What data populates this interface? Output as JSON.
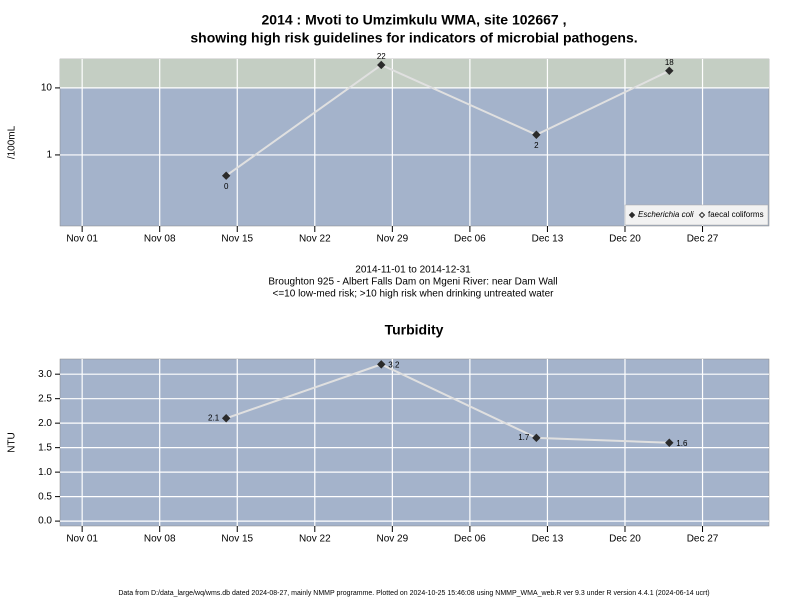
{
  "chart_data": [
    {
      "type": "line",
      "title": [
        "2014 : Mvoti to Umzimkulu WMA, site 102667 ,",
        "showing high risk guidelines for indicators of microbial pathogens."
      ],
      "ylabel": "/100mL",
      "log_y": true,
      "grid": true,
      "x": [
        "2014-11-14",
        "2014-11-28",
        "2014-12-12",
        "2014-12-24"
      ],
      "series": [
        {
          "name": "Escherichia coli",
          "color": "#2b2b2b",
          "line_color": "#e0e0e0",
          "marker": "filled",
          "values": [
            0.49,
            22,
            2,
            18
          ],
          "value_labels": [
            "0",
            "22",
            "2",
            "18"
          ]
        },
        {
          "name": "faecal coliforms",
          "color": "#2b2b2b",
          "marker": "open",
          "values": [
            null,
            null,
            null,
            null
          ]
        }
      ],
      "high_risk_above": 10,
      "band_color": "#c4cec3",
      "plot_color": "#a4b3cb",
      "xlim": [
        "2014-10-30",
        "2015-01-02"
      ],
      "xticks": [
        {
          "value": "2014-11-01",
          "label": "Nov 01"
        },
        {
          "value": "2014-11-08",
          "label": "Nov 08"
        },
        {
          "value": "2014-11-15",
          "label": "Nov 15"
        },
        {
          "value": "2014-11-22",
          "label": "Nov 22"
        },
        {
          "value": "2014-11-29",
          "label": "Nov 29"
        },
        {
          "value": "2014-12-06",
          "label": "Dec 06"
        },
        {
          "value": "2014-12-13",
          "label": "Dec 13"
        },
        {
          "value": "2014-12-20",
          "label": "Dec 20"
        },
        {
          "value": "2014-12-27",
          "label": "Dec 27"
        }
      ],
      "ylim": [
        0.087,
        27
      ],
      "yticks": [
        1,
        10
      ],
      "legend": "bottom-right",
      "caption": [
        "2014-11-01 to 2014-12-31",
        "Broughton 925 - Albert Falls Dam on Mgeni River: near Dam Wall",
        "<=10 low-med risk; >10 high risk when drinking untreated water"
      ]
    },
    {
      "type": "line",
      "title": [
        "Turbidity"
      ],
      "ylabel": "NTU",
      "log_y": false,
      "grid": true,
      "x": [
        "2014-11-14",
        "2014-11-28",
        "2014-12-12",
        "2014-12-24"
      ],
      "series": [
        {
          "color": "#2b2b2b",
          "line_color": "#e0e0e0",
          "marker": "filled",
          "values": [
            2.1,
            3.2,
            1.7,
            1.6
          ]
        }
      ],
      "plot_color": "#a4b3cb",
      "xlim": [
        "2014-10-30",
        "2015-01-02"
      ],
      "xticks": [
        {
          "value": "2014-11-01",
          "label": "Nov 01"
        },
        {
          "value": "2014-11-08",
          "label": "Nov 08"
        },
        {
          "value": "2014-11-15",
          "label": "Nov 15"
        },
        {
          "value": "2014-11-22",
          "label": "Nov 22"
        },
        {
          "value": "2014-11-29",
          "label": "Nov 29"
        },
        {
          "value": "2014-12-06",
          "label": "Dec 06"
        },
        {
          "value": "2014-12-13",
          "label": "Dec 13"
        },
        {
          "value": "2014-12-20",
          "label": "Dec 20"
        },
        {
          "value": "2014-12-27",
          "label": "Dec 27"
        }
      ],
      "ylim": [
        -0.1,
        3.31
      ],
      "yticks": [
        {
          "value": 0,
          "label": "0.0"
        },
        {
          "value": 0.5,
          "label": "0.5"
        },
        {
          "value": 1,
          "label": "1.0"
        },
        {
          "value": 1.5,
          "label": "1.5"
        },
        {
          "value": 2,
          "label": "2.0"
        },
        {
          "value": 2.5,
          "label": "2.5"
        },
        {
          "value": 3,
          "label": "3.0"
        }
      ]
    }
  ],
  "footer": "Data from D:/data_large/wq/wms.db dated 2024-08-27, mainly NMMP programme. Plotted on 2024-10-25 15:46:08 using NMMP_WMA_web.R ver 9.3 under R version 4.4.1 (2024-06-14 ucrt)"
}
